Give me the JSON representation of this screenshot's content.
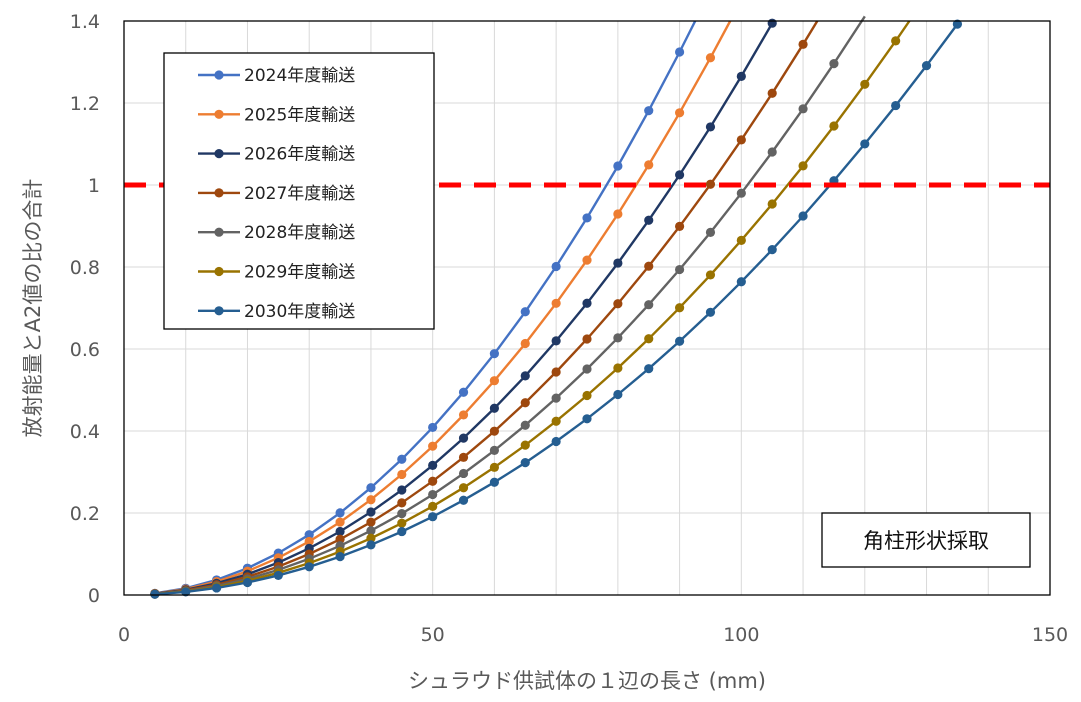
{
  "chart_data": {
    "type": "line",
    "xlabel": "シュラウド供試体の１辺の長さ (mm)",
    "ylabel": "放射能量とA2値の比の合計",
    "xlim": [
      0,
      150
    ],
    "ylim": [
      0,
      1.4
    ],
    "x_ticks": [
      "0",
      "50",
      "100",
      "150"
    ],
    "y_ticks": [
      "0",
      "0.2",
      "0.4",
      "0.6",
      "0.8",
      "1",
      "1.2",
      "1.4"
    ],
    "grid": true,
    "legend_position": "top-left",
    "reference_line": {
      "y": 1.0,
      "color": "#ff0000",
      "style": "dashed"
    },
    "annotation": "角柱形状採取",
    "x": [
      5,
      10,
      15,
      20,
      25,
      30,
      35,
      40,
      45,
      50,
      55,
      60,
      65,
      70,
      75,
      80,
      85,
      90,
      95,
      100,
      105,
      110,
      115,
      120,
      125,
      130,
      135
    ],
    "series": [
      {
        "name": "2024年度輸送",
        "color": "#4472c4",
        "k": 0.0001635
      },
      {
        "name": "2025年度輸送",
        "color": "#ed7d31",
        "k": 0.0001452
      },
      {
        "name": "2026年度輸送",
        "color": "#203864",
        "k": 0.0001265
      },
      {
        "name": "2027年度輸送",
        "color": "#9e480e",
        "k": 0.000111
      },
      {
        "name": "2028年度輸送",
        "color": "#636363",
        "k": 9.8e-05
      },
      {
        "name": "2029年度輸送",
        "color": "#997300",
        "k": 8.65e-05
      },
      {
        "name": "2030年度輸送",
        "color": "#255e91",
        "k": 7.64e-05
      }
    ]
  }
}
